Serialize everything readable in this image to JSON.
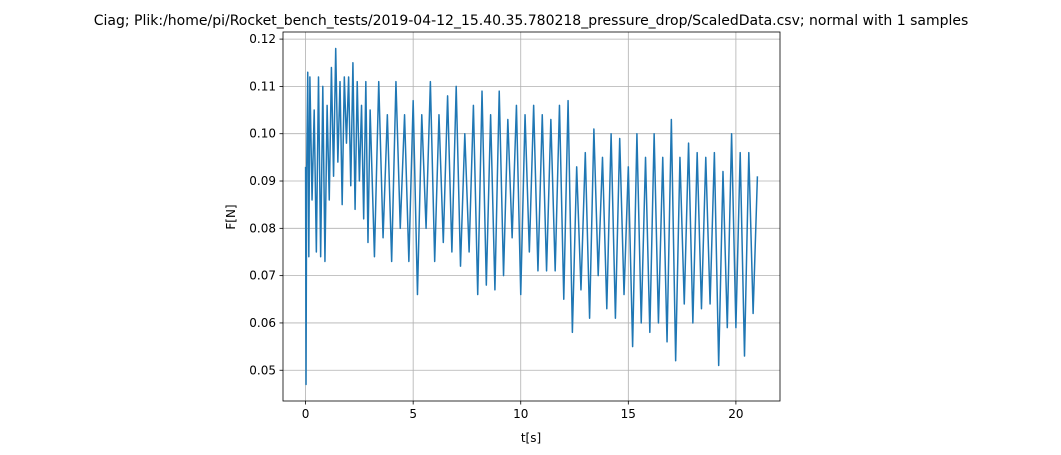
{
  "chart_data": {
    "type": "line",
    "title": "Ciag; Plik:/home/pi/Rocket_bench_tests/2019-04-12_15.40.35.780218_pressure_drop/ScaledData.csv; normal with 1 samples",
    "xlabel": "t[s]",
    "ylabel": "F[N]",
    "xlim": [
      -1.05,
      22.05
    ],
    "ylim": [
      0.0435,
      0.1215
    ],
    "xticks": [
      "0",
      "5",
      "10",
      "15",
      "20"
    ],
    "yticks": [
      "0.05",
      "0.06",
      "0.07",
      "0.08",
      "0.09",
      "0.10",
      "0.11",
      "0.12"
    ],
    "grid": true,
    "color": "#1f77b4",
    "series": [
      {
        "x": [
          0,
          0.02,
          0.05,
          0.1,
          0.15,
          0.2,
          0.3,
          0.4,
          0.5,
          0.6,
          0.7,
          0.8,
          0.9,
          1.0,
          1.1,
          1.2,
          1.3,
          1.4,
          1.5,
          1.6,
          1.7,
          1.8,
          1.9,
          2.0,
          2.1,
          2.2,
          2.3,
          2.4,
          2.5,
          2.6,
          2.7,
          2.8,
          2.9,
          3.0,
          3.2,
          3.4,
          3.6,
          3.8,
          4.0,
          4.2,
          4.4,
          4.6,
          4.8,
          5.0,
          5.2,
          5.4,
          5.6,
          5.8,
          6.0,
          6.2,
          6.4,
          6.6,
          6.8,
          7.0,
          7.2,
          7.4,
          7.6,
          7.8,
          8.0,
          8.2,
          8.4,
          8.6,
          8.8,
          9.0,
          9.2,
          9.4,
          9.6,
          9.8,
          10.0,
          10.2,
          10.4,
          10.6,
          10.8,
          11.0,
          11.2,
          11.4,
          11.6,
          11.8,
          12.0,
          12.2,
          12.4,
          12.6,
          12.8,
          13.0,
          13.2,
          13.4,
          13.6,
          13.8,
          14.0,
          14.2,
          14.4,
          14.6,
          14.8,
          15.0,
          15.2,
          15.4,
          15.6,
          15.8,
          16.0,
          16.2,
          16.4,
          16.6,
          16.8,
          17.0,
          17.2,
          17.4,
          17.6,
          17.8,
          18.0,
          18.2,
          18.4,
          18.6,
          18.8,
          19.0,
          19.2,
          19.4,
          19.6,
          19.8,
          20.0,
          20.2,
          20.4,
          20.6,
          20.8,
          21.0
        ],
        "y": [
          0.093,
          0.047,
          0.092,
          0.113,
          0.074,
          0.112,
          0.086,
          0.105,
          0.075,
          0.112,
          0.074,
          0.11,
          0.073,
          0.106,
          0.086,
          0.114,
          0.091,
          0.118,
          0.094,
          0.111,
          0.085,
          0.112,
          0.098,
          0.112,
          0.089,
          0.115,
          0.084,
          0.111,
          0.09,
          0.106,
          0.082,
          0.111,
          0.077,
          0.105,
          0.074,
          0.111,
          0.078,
          0.104,
          0.073,
          0.111,
          0.08,
          0.104,
          0.073,
          0.107,
          0.066,
          0.104,
          0.08,
          0.111,
          0.073,
          0.104,
          0.077,
          0.108,
          0.075,
          0.11,
          0.072,
          0.1,
          0.075,
          0.106,
          0.066,
          0.109,
          0.068,
          0.104,
          0.067,
          0.109,
          0.07,
          0.103,
          0.078,
          0.106,
          0.066,
          0.104,
          0.075,
          0.106,
          0.071,
          0.104,
          0.071,
          0.103,
          0.071,
          0.106,
          0.065,
          0.107,
          0.058,
          0.093,
          0.067,
          0.096,
          0.061,
          0.101,
          0.07,
          0.095,
          0.063,
          0.1,
          0.061,
          0.099,
          0.066,
          0.093,
          0.055,
          0.1,
          0.06,
          0.095,
          0.058,
          0.1,
          0.06,
          0.095,
          0.056,
          0.103,
          0.052,
          0.095,
          0.064,
          0.098,
          0.06,
          0.096,
          0.063,
          0.095,
          0.064,
          0.096,
          0.051,
          0.092,
          0.059,
          0.1,
          0.059,
          0.096,
          0.053,
          0.096,
          0.062,
          0.091
        ]
      }
    ]
  }
}
